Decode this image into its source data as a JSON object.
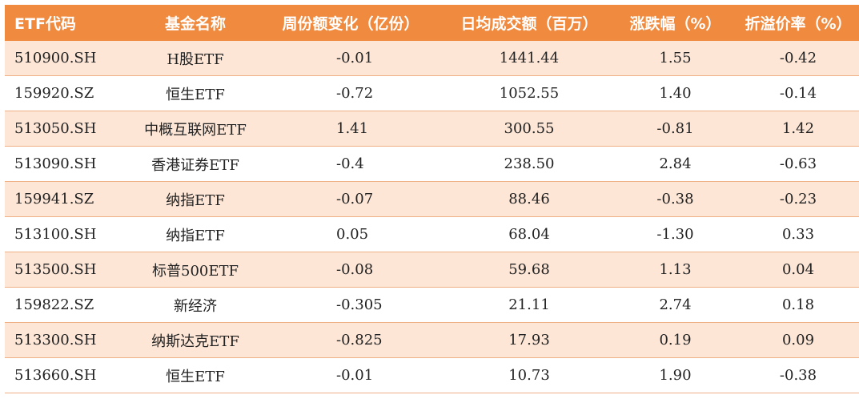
{
  "table": {
    "headers": [
      "ETF代码",
      "基金名称",
      "周份额变化（亿份）",
      "日均成交额（百万）",
      "涨跌幅（%）",
      "折溢价率（%）"
    ],
    "rows": [
      [
        "510900.SH",
        "H股ETF",
        "-0.01",
        "1441.44",
        "1.55",
        "-0.42"
      ],
      [
        "159920.SZ",
        "恒生ETF",
        "-0.72",
        "1052.55",
        "1.40",
        "-0.14"
      ],
      [
        "513050.SH",
        "中概互联网ETF",
        "1.41",
        "300.55",
        "-0.81",
        "1.42"
      ],
      [
        "513090.SH",
        "香港证券ETF",
        "-0.4",
        "238.50",
        "2.84",
        "-0.63"
      ],
      [
        "159941.SZ",
        "纳指ETF",
        "-0.07",
        "88.46",
        "-0.38",
        "-0.23"
      ],
      [
        "513100.SH",
        "纳指ETF",
        "0.05",
        "68.04",
        "-1.30",
        "0.33"
      ],
      [
        "513500.SH",
        "标普500ETF",
        "-0.08",
        "59.68",
        "1.13",
        "0.04"
      ],
      [
        "159822.SZ",
        "新经济",
        "-0.305",
        "21.11",
        "2.74",
        "0.18"
      ],
      [
        "513300.SH",
        "纳斯达克ETF",
        "-0.825",
        "17.93",
        "0.19",
        "0.09"
      ],
      [
        "513660.SH",
        "恒生ETF",
        "-0.01",
        "10.73",
        "1.90",
        "-0.38"
      ]
    ]
  },
  "colors": {
    "header_bg": "#f08a3e",
    "header_text": "#ffffff",
    "row_odd_bg": "#fde6d6",
    "row_even_bg": "#ffffff",
    "divider": "#f0b085"
  }
}
